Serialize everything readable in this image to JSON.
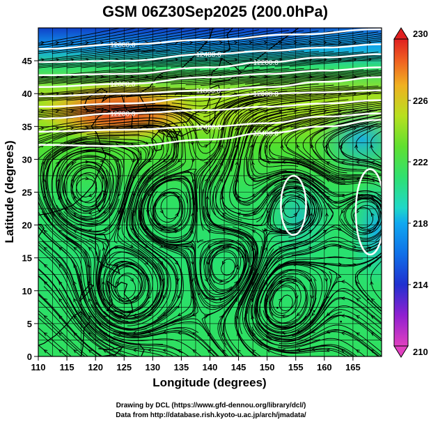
{
  "chart_data": {
    "type": "heatmap",
    "title": "GSM 06Z30Sep2025 (200.0hPa)",
    "xlabel": "Longitude (degrees)",
    "ylabel": "Latitude  (degrees)",
    "xlim": [
      110,
      170
    ],
    "ylim": [
      0,
      50
    ],
    "x_ticks": [
      110,
      115,
      120,
      125,
      130,
      135,
      140,
      145,
      150,
      155,
      160,
      165
    ],
    "y_ticks": [
      0,
      5,
      10,
      15,
      20,
      25,
      30,
      35,
      40,
      45
    ],
    "colorbar": {
      "min": 210,
      "max": 230,
      "ticks": [
        210,
        214,
        218,
        222,
        226,
        230
      ],
      "colors": [
        "#e040c0",
        "#9020d0",
        "#2030d0",
        "#10a0f0",
        "#20d8c0",
        "#30e070",
        "#60e030",
        "#b0e020",
        "#f0c020",
        "#f07020",
        "#e02020"
      ]
    },
    "field_description": "Temperature field (K) with streamlines and geopotential height contours",
    "contours": [
      {
        "label": "12600.0",
        "lat_at_lon": [
          [
            110,
            46.8
          ],
          [
            125,
            47.5
          ],
          [
            140,
            48.2
          ],
          [
            155,
            49.0
          ],
          [
            170,
            49.8
          ]
        ]
      },
      {
        "label": "12400.0",
        "lat_at_lon": [
          [
            110,
            44.8
          ],
          [
            125,
            45.0
          ],
          [
            140,
            46.0
          ],
          [
            150,
            46.5
          ],
          [
            160,
            47.0
          ],
          [
            170,
            47.5
          ]
        ]
      },
      {
        "label": "12200.0",
        "lat_at_lon": [
          [
            110,
            42.8
          ],
          [
            125,
            43.0
          ],
          [
            140,
            44.0
          ],
          [
            150,
            44.8
          ],
          [
            160,
            45.5
          ],
          [
            170,
            46.0
          ]
        ]
      },
      {
        "label": "12000.0",
        "lat_at_lon": [
          [
            110,
            41.0
          ],
          [
            125,
            41.5
          ],
          [
            140,
            42.5
          ],
          [
            150,
            43.0
          ],
          [
            160,
            43.5
          ],
          [
            170,
            44.0
          ]
        ]
      },
      {
        "label": "11800.0",
        "lat_at_lon": [
          [
            110,
            39.6
          ],
          [
            125,
            40.0
          ],
          [
            140,
            40.5
          ],
          [
            150,
            41.0
          ],
          [
            160,
            41.8
          ],
          [
            170,
            42.5
          ]
        ]
      },
      {
        "label": "12000.0",
        "lat_at_lon": [
          [
            110,
            38.0
          ],
          [
            125,
            38.5
          ],
          [
            140,
            39.5
          ],
          [
            150,
            40.0
          ],
          [
            160,
            40.2
          ],
          [
            170,
            40.5
          ]
        ]
      },
      {
        "label": "12200.0",
        "lat_at_lon": [
          [
            110,
            36.2
          ],
          [
            125,
            37.0
          ],
          [
            140,
            37.5
          ],
          [
            150,
            38.0
          ],
          [
            160,
            38.5
          ],
          [
            170,
            39.0
          ]
        ]
      },
      {
        "label": "12400.0",
        "lat_at_lon": [
          [
            110,
            34.2
          ],
          [
            125,
            34.5
          ],
          [
            140,
            35.0
          ],
          [
            150,
            35.5
          ],
          [
            160,
            36.5
          ],
          [
            170,
            37.0
          ]
        ]
      },
      {
        "label": "12400.0",
        "lat_at_lon": [
          [
            110,
            32.2
          ],
          [
            125,
            32.0
          ],
          [
            140,
            33.0
          ],
          [
            150,
            34.0
          ],
          [
            160,
            35.0
          ],
          [
            170,
            36.0
          ]
        ]
      }
    ],
    "closed_contours": [
      {
        "center_lon": 154.6,
        "center_lat": 23.0,
        "lon_radius": 2.2,
        "lat_radius": 4.5
      },
      {
        "center_lon": 168.0,
        "center_lat": 22.0,
        "lon_radius": 2.5,
        "lat_radius": 6.5
      }
    ],
    "contour_labels_shown": [
      "12600.0",
      "12200.0",
      "12000.0",
      "11800.0",
      "12000.0",
      "12200.0",
      "12400.0"
    ]
  },
  "credits": {
    "line1": "Drawing by DCL (https://www.gfd-dennou.org/library/dcl/)",
    "line2": "Data from http://database.rish.kyoto-u.ac.jp/arch/jmadata/"
  }
}
